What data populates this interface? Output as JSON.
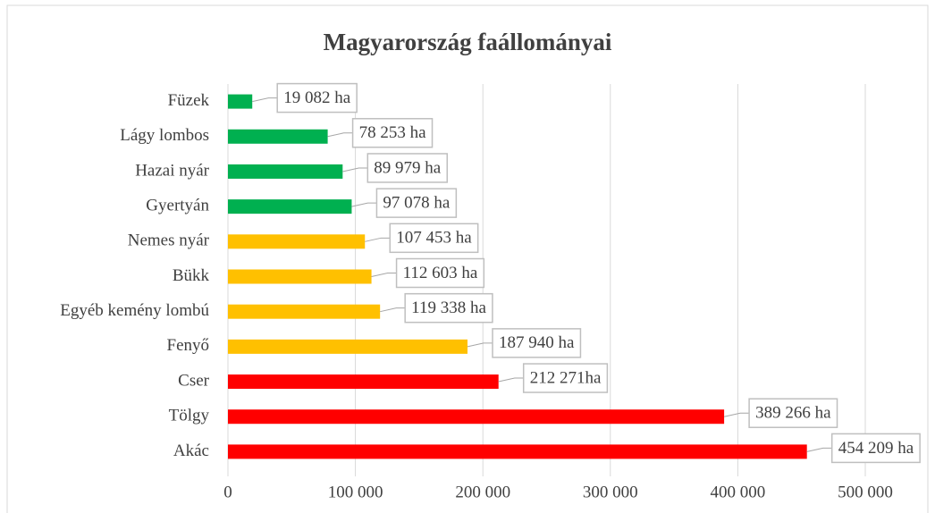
{
  "chart_data": {
    "type": "hbar",
    "title": "Magyarország faállományai",
    "categories": [
      "Füzek",
      "Lágy lombos",
      "Hazai nyár",
      "Gyertyán",
      "Nemes nyár",
      "Bükk",
      "Egyéb kemény lombú",
      "Fenyő",
      "Cser",
      "Tölgy",
      "Akác"
    ],
    "values": [
      19082,
      78253,
      89979,
      97078,
      107453,
      112603,
      119338,
      187940,
      212271,
      389266,
      454209
    ],
    "value_labels": [
      "19 082 ha",
      "78 253 ha",
      "89 979 ha",
      "97 078 ha",
      "107 453 ha",
      "112 603 ha",
      "119 338 ha",
      "187 940 ha",
      "212 271ha",
      "389 266 ha",
      "454 209 ha"
    ],
    "colors": [
      "#00b050",
      "#00b050",
      "#00b050",
      "#00b050",
      "#ffc000",
      "#ffc000",
      "#ffc000",
      "#ffc000",
      "#ff0000",
      "#ff0000",
      "#ff0000"
    ],
    "xlim": [
      0,
      500000
    ],
    "xticks": [
      0,
      {
        "value": 100000,
        "label": "100 000"
      },
      {
        "value": 200000,
        "label": "200 000"
      },
      {
        "value": 300000,
        "label": "300 000"
      },
      {
        "value": 400000,
        "label": "400 000"
      },
      {
        "value": 500000,
        "label": "500 000"
      }
    ],
    "grid": true
  }
}
